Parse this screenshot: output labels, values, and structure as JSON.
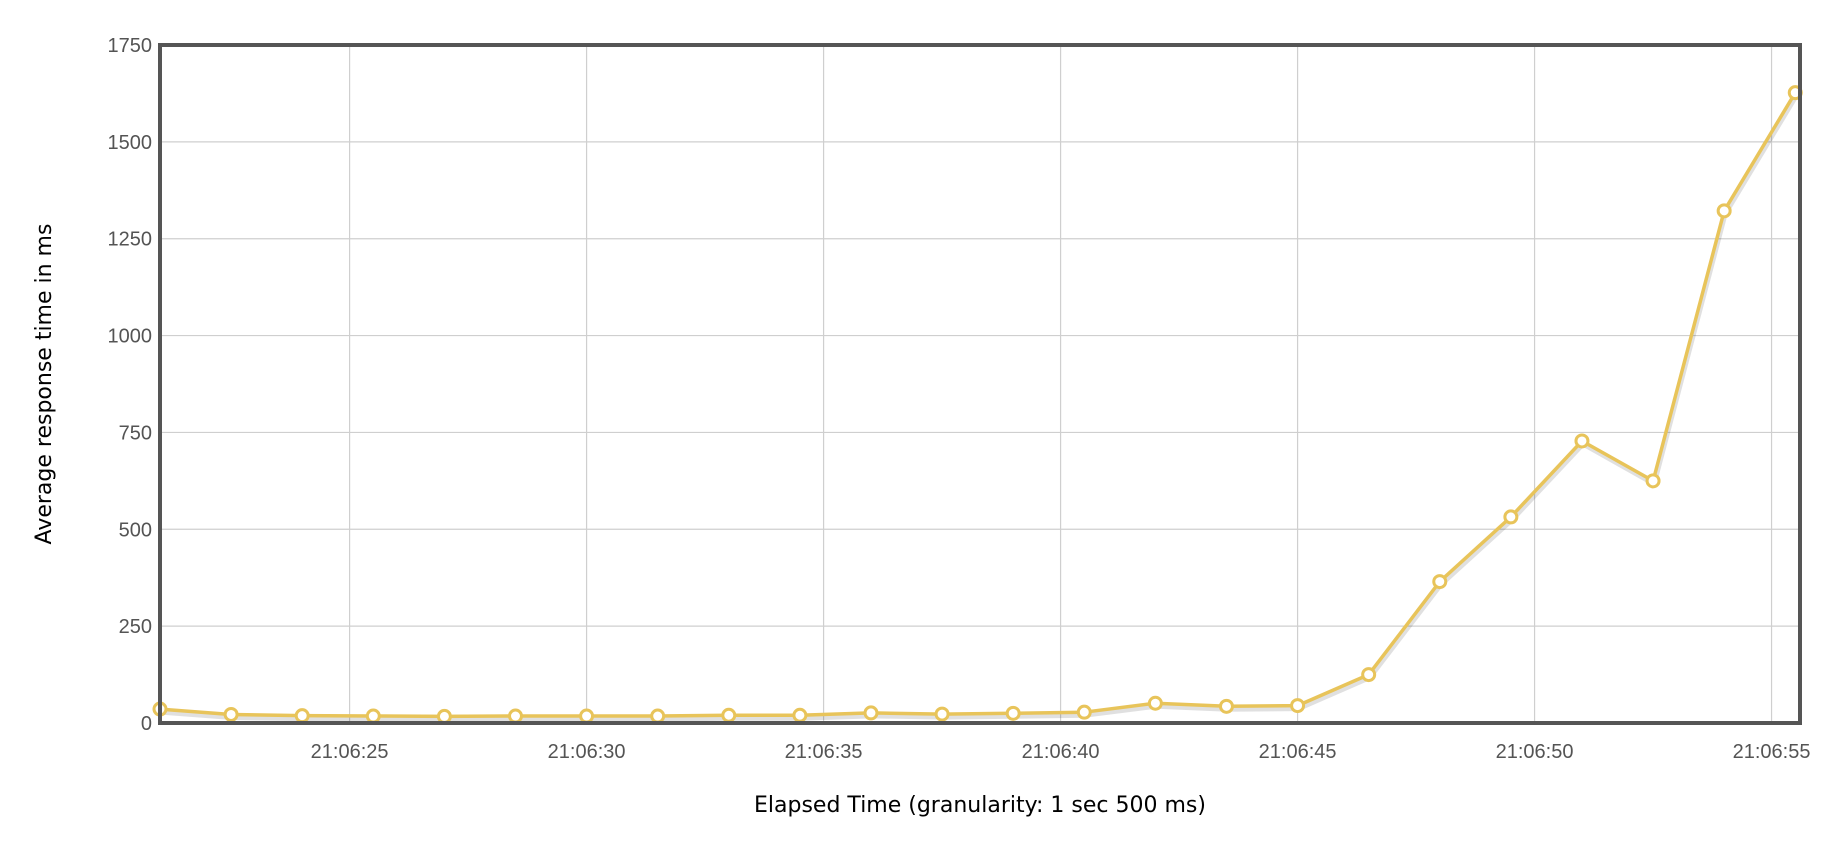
{
  "chart_data": {
    "type": "line",
    "xlabel": "Elapsed Time (granularity: 1 sec 500 ms)",
    "ylabel": "Average response time in ms",
    "ylim": [
      0,
      1750
    ],
    "xlim": [
      "21:06:21",
      "21:06:55.6"
    ],
    "yticks": [
      0,
      250,
      500,
      750,
      1000,
      1250,
      1500,
      1750
    ],
    "xticks": [
      "21:06:25",
      "21:06:30",
      "21:06:35",
      "21:06:40",
      "21:06:45",
      "21:06:50",
      "21:06:55"
    ],
    "grid": true,
    "legend": "none",
    "series": [
      {
        "color": "#e8c45a",
        "x": [
          "21:06:21",
          "21:06:22.5",
          "21:06:24",
          "21:06:25.5",
          "21:06:27",
          "21:06:28.5",
          "21:06:30",
          "21:06:31.5",
          "21:06:33",
          "21:06:34.5",
          "21:06:36",
          "21:06:37.5",
          "21:06:39",
          "21:06:40.5",
          "21:06:42",
          "21:06:43.5",
          "21:06:45",
          "21:06:46.5",
          "21:06:48",
          "21:06:49.5",
          "21:06:51",
          "21:06:52.5",
          "21:06:54",
          "21:06:55.5"
        ],
        "values": [
          36,
          22,
          19,
          18,
          17,
          18,
          18,
          18,
          20,
          20,
          26,
          23,
          25,
          28,
          51,
          43,
          45,
          125,
          365,
          532,
          728,
          625,
          1322,
          1627
        ]
      }
    ]
  }
}
